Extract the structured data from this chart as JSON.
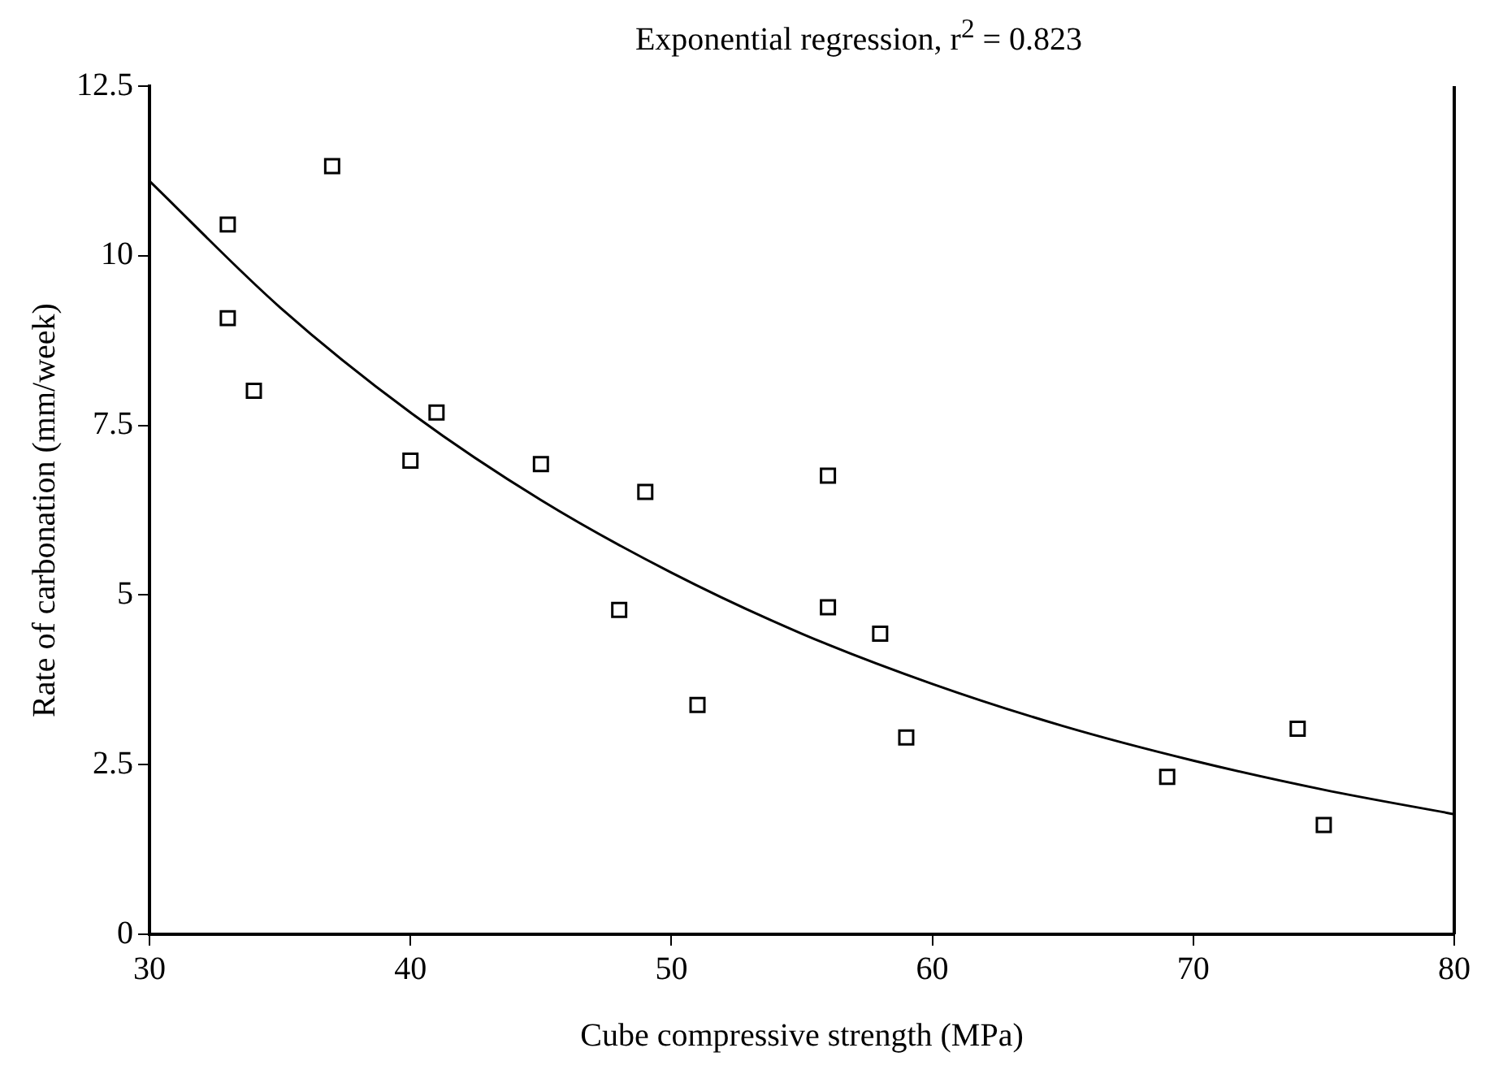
{
  "chart_data": {
    "type": "scatter",
    "title": "Exponential regression,  r$^{2}$ = 0.823",
    "xlabel": "Cube compressive strength (MPa)",
    "ylabel": "Rate of carbonation (mm/week)",
    "xlim": [
      30,
      80
    ],
    "xticks": [
      30,
      40,
      50,
      60,
      70,
      80
    ],
    "ylim": [
      0,
      12.5
    ],
    "yticks": [
      0,
      2.5,
      5,
      7.5,
      10,
      12.5
    ],
    "grid": false,
    "legend": false,
    "series": [
      {
        "color": "#000000",
        "marker": "square",
        "x": [
          33,
          33,
          34,
          37,
          40,
          41,
          45,
          49,
          48,
          51,
          56,
          56,
          58,
          59,
          69,
          74,
          75
        ],
        "values": [
          10.46,
          9.08,
          8.01,
          11.32,
          6.98,
          7.69,
          6.93,
          6.52,
          4.78,
          3.38,
          6.76,
          4.82,
          4.43,
          2.9,
          2.32,
          3.03,
          1.61
        ]
      },
      {
        "type": "line",
        "color": "#000000",
        "marker": "none",
        "line_style": "solid",
        "x": [
          30,
          35,
          40,
          45,
          50,
          55,
          60,
          65,
          70,
          75,
          80
        ],
        "values": [
          11.1,
          9.24,
          7.69,
          6.4,
          5.33,
          4.43,
          3.69,
          3.07,
          2.56,
          2.13,
          1.77
        ]
      }
    ]
  }
}
